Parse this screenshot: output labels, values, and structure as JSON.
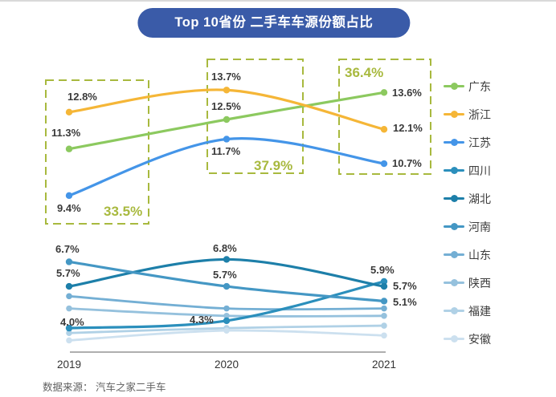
{
  "title": "Top 10省份 二手车车源份额占比",
  "source": "数据来源： 汽车之家二手车",
  "colors": {
    "title_bg": "#3A5BA8",
    "accent_box": "#A8B93E",
    "annotation_text": "#A8B93E",
    "data_label": "#3a3a3a",
    "axis": "#7f7f7f"
  },
  "chart_data": {
    "type": "line",
    "title": "Top 10省份 二手车车源份额占比",
    "x": [
      "2019",
      "2020",
      "2021"
    ],
    "unit": "%",
    "ylim": [
      3,
      15
    ],
    "grid": false,
    "legend_position": "right",
    "series": [
      {
        "name": "广东",
        "color": "#8CC95F",
        "values": [
          11.3,
          12.5,
          13.6
        ],
        "labeled": true
      },
      {
        "name": "浙江",
        "color": "#F5B637",
        "values": [
          12.8,
          13.7,
          12.1
        ],
        "labeled": true
      },
      {
        "name": "江苏",
        "color": "#4495E8",
        "values": [
          9.4,
          11.7,
          10.7
        ],
        "labeled": true
      },
      {
        "name": "四川",
        "color": "#2B8FBC",
        "values": [
          4.0,
          4.3,
          5.9
        ],
        "labeled": true
      },
      {
        "name": "湖北",
        "color": "#1D7FA9",
        "values": [
          5.7,
          6.8,
          5.7
        ],
        "labeled": true
      },
      {
        "name": "河南",
        "color": "#4497C4",
        "values": [
          6.7,
          5.7,
          5.1
        ],
        "labeled": true
      },
      {
        "name": "山东",
        "color": "#74AFD4",
        "values": [
          5.3,
          4.8,
          4.8
        ],
        "labeled": false
      },
      {
        "name": "陕西",
        "color": "#95C1DD",
        "values": [
          4.8,
          4.5,
          4.5
        ],
        "labeled": false
      },
      {
        "name": "福建",
        "color": "#B0D1E6",
        "values": [
          3.8,
          4.0,
          4.1
        ],
        "labeled": false
      },
      {
        "name": "安徽",
        "color": "#CCE0EF",
        "values": [
          3.5,
          3.9,
          3.7
        ],
        "labeled": false
      }
    ],
    "annotations": [
      {
        "text": "33.5%",
        "year": "2019",
        "meaning": "top-3 provinces share sum"
      },
      {
        "text": "37.9%",
        "year": "2020",
        "meaning": "top-3 provinces share sum"
      },
      {
        "text": "36.4%",
        "year": "2021",
        "meaning": "top-3 provinces share sum"
      }
    ]
  }
}
